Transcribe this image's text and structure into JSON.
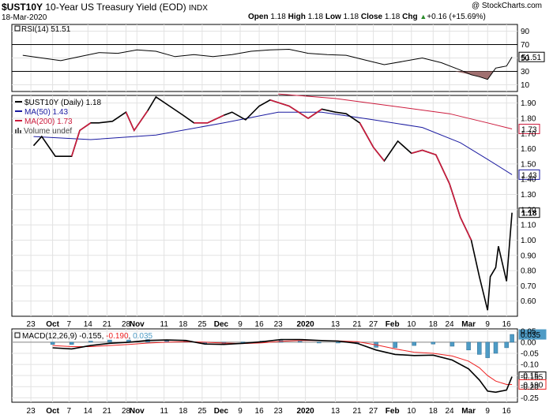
{
  "header": {
    "symbol": "$UST10Y",
    "description": "10-Year US Treasury Yield (EOD)",
    "exchange": "INDX",
    "date": "18-Mar-2020",
    "watermark": "@ StockCharts.com",
    "open_label": "Open",
    "open_value": "1.18",
    "high_label": "High",
    "high_value": "1.18",
    "low_label": "Low",
    "low_value": "1.18",
    "close_label": "Close",
    "close_value": "1.18",
    "chg_label": "Chg",
    "chg_value": "+0.16 (+15.69%)",
    "chg_arrow": "▲"
  },
  "colors": {
    "price": "#000000",
    "ma50": "#1a1aa0",
    "ma200": "#cc1a3c",
    "macd": "#000000",
    "signal": "#ee2222",
    "hist": "#4e9bc5",
    "rsi_fill": "#a07070"
  },
  "chart_data": [
    {
      "type": "line",
      "title": "RSI(14) 51.51",
      "series_label": "RSI(14)",
      "last_value": 51.51,
      "last_label": "51.51",
      "ylim": [
        0,
        100
      ],
      "y_ticks": [
        10,
        30,
        50,
        70,
        90
      ],
      "reference_lines": [
        30,
        70
      ],
      "x": [
        "2019-09-20",
        "2019-09-27",
        "2019-10-04",
        "2019-10-11",
        "2019-10-18",
        "2019-10-25",
        "2019-11-01",
        "2019-11-08",
        "2019-11-15",
        "2019-11-22",
        "2019-11-29",
        "2019-12-06",
        "2019-12-13",
        "2019-12-20",
        "2019-12-27",
        "2020-01-03",
        "2020-01-10",
        "2020-01-17",
        "2020-01-24",
        "2020-01-31",
        "2020-02-07",
        "2020-02-14",
        "2020-02-21",
        "2020-02-28",
        "2020-03-03",
        "2020-03-06",
        "2020-03-09",
        "2020-03-12",
        "2020-03-16",
        "2020-03-18"
      ],
      "values": [
        54,
        50,
        46,
        52,
        58,
        57,
        62,
        60,
        52,
        55,
        52,
        55,
        60,
        62,
        63,
        57,
        55,
        54,
        47,
        40,
        45,
        50,
        43,
        32,
        25,
        22,
        18,
        35,
        38,
        51.51
      ]
    },
    {
      "type": "line",
      "title": "$UST10Y (Daily) 1.18",
      "ylim": [
        0.5,
        1.95
      ],
      "y_ticks": [
        0.6,
        0.7,
        0.8,
        0.9,
        1.0,
        1.1,
        1.2,
        1.3,
        1.4,
        1.5,
        1.6,
        1.7,
        1.8,
        1.9
      ],
      "y_tick_labels": [
        "0.60",
        "0.70",
        "0.80",
        "0.90",
        "1.00",
        "1.10",
        "1.20",
        "1.30",
        "1.40",
        "1.50",
        "1.60",
        "1.70",
        "1.80",
        "1.90"
      ],
      "x_ticks": [
        "23",
        "Oct",
        "7",
        "14",
        "21",
        "28",
        "Nov",
        "11",
        "18",
        "25",
        "Dec",
        "9",
        "16",
        "23",
        "2020",
        "13",
        "21",
        "27",
        "Feb",
        "10",
        "18",
        "24",
        "Mar",
        "9",
        "16"
      ],
      "legend": [
        {
          "name": "$UST10Y (Daily) 1.18",
          "style": "bar"
        },
        {
          "name": "MA(50) 1.43",
          "style": "line"
        },
        {
          "name": "MA(200) 1.73",
          "style": "line"
        },
        {
          "name": "Volume undef",
          "style": "hist"
        }
      ],
      "legend_position": "top-left",
      "series": [
        {
          "name": "$UST10Y",
          "x": [
            "2019-09-24",
            "2019-09-27",
            "2019-10-02",
            "2019-10-08",
            "2019-10-11",
            "2019-10-15",
            "2019-10-18",
            "2019-10-23",
            "2019-10-28",
            "2019-10-31",
            "2019-11-05",
            "2019-11-08",
            "2019-11-13",
            "2019-11-18",
            "2019-11-22",
            "2019-11-27",
            "2019-12-03",
            "2019-12-06",
            "2019-12-11",
            "2019-12-16",
            "2019-12-20",
            "2019-12-27",
            "2020-01-03",
            "2020-01-08",
            "2020-01-13",
            "2020-01-17",
            "2020-01-22",
            "2020-01-27",
            "2020-01-31",
            "2020-02-05",
            "2020-02-10",
            "2020-02-14",
            "2020-02-19",
            "2020-02-24",
            "2020-02-28",
            "2020-03-03",
            "2020-03-06",
            "2020-03-09",
            "2020-03-10",
            "2020-03-12",
            "2020-03-13",
            "2020-03-16",
            "2020-03-18"
          ],
          "values": [
            1.62,
            1.68,
            1.55,
            1.55,
            1.72,
            1.77,
            1.77,
            1.78,
            1.84,
            1.72,
            1.85,
            1.94,
            1.88,
            1.82,
            1.77,
            1.77,
            1.82,
            1.84,
            1.79,
            1.88,
            1.92,
            1.88,
            1.8,
            1.86,
            1.84,
            1.83,
            1.77,
            1.61,
            1.52,
            1.65,
            1.57,
            1.59,
            1.56,
            1.37,
            1.15,
            1.0,
            0.76,
            0.54,
            0.76,
            0.82,
            0.96,
            0.73,
            1.18
          ]
        },
        {
          "name": "MA(50)",
          "x": [
            "2019-09-24",
            "2019-10-15",
            "2019-11-08",
            "2019-12-03",
            "2019-12-23",
            "2020-01-08",
            "2020-01-27",
            "2020-02-14",
            "2020-02-28",
            "2020-03-09",
            "2020-03-18"
          ],
          "values": [
            1.68,
            1.66,
            1.69,
            1.77,
            1.84,
            1.84,
            1.79,
            1.74,
            1.64,
            1.53,
            1.43
          ]
        },
        {
          "name": "MA(200)",
          "x": [
            "2019-12-23",
            "2020-01-13",
            "2020-02-03",
            "2020-02-24",
            "2020-03-09",
            "2020-03-18"
          ],
          "values": [
            1.96,
            1.93,
            1.88,
            1.83,
            1.77,
            1.73
          ]
        }
      ],
      "last_labels": [
        {
          "name": "MA(200)",
          "value": 1.73,
          "label": "1.73"
        },
        {
          "name": "MA(50)",
          "value": 1.43,
          "label": "1.43"
        },
        {
          "name": "$UST10Y",
          "value": 1.18,
          "label": "1.18"
        }
      ]
    },
    {
      "type": "line",
      "title": "MACD(12,26,9) -0.155, -0.190, 0.035",
      "macd_label": "MACD(12,26,9)",
      "macd_value": "-0.155",
      "signal_value": "-0.190",
      "hist_value": "0.035",
      "ylim": [
        -0.27,
        0.06
      ],
      "y_ticks": [
        0.05,
        0.0,
        -0.05,
        -0.1,
        -0.15,
        -0.2,
        -0.25
      ],
      "y_tick_labels": [
        "0.05",
        "0.00",
        "-0.05",
        "-0.10",
        "-0.15",
        "-0.20",
        "-0.25"
      ],
      "last_labels": [
        {
          "name": "Histogram",
          "value": 0.035,
          "label": "0.035"
        },
        {
          "name": "MACD",
          "value": -0.155,
          "label": "-0.155"
        },
        {
          "name": "Signal",
          "value": -0.19,
          "label": "-0.190"
        }
      ],
      "x": [
        "2019-10-01",
        "2019-10-08",
        "2019-10-15",
        "2019-10-22",
        "2019-10-29",
        "2019-11-05",
        "2019-11-12",
        "2019-11-19",
        "2019-11-26",
        "2019-12-03",
        "2019-12-10",
        "2019-12-17",
        "2019-12-24",
        "2019-12-31",
        "2020-01-07",
        "2020-01-14",
        "2020-01-21",
        "2020-01-28",
        "2020-02-04",
        "2020-02-11",
        "2020-02-18",
        "2020-02-25",
        "2020-03-02",
        "2020-03-06",
        "2020-03-09",
        "2020-03-12",
        "2020-03-16",
        "2020-03-18"
      ],
      "series": [
        {
          "name": "MACD",
          "values": [
            -0.025,
            -0.03,
            -0.015,
            -0.005,
            0.0,
            0.008,
            0.01,
            0.008,
            -0.008,
            -0.01,
            -0.005,
            0.002,
            0.012,
            0.012,
            0.008,
            0.005,
            -0.005,
            -0.035,
            -0.055,
            -0.06,
            -0.058,
            -0.08,
            -0.12,
            -0.17,
            -0.22,
            -0.225,
            -0.215,
            -0.155
          ]
        },
        {
          "name": "Signal",
          "values": [
            -0.015,
            -0.02,
            -0.02,
            -0.015,
            -0.01,
            -0.004,
            0.0,
            0.002,
            0.0,
            -0.004,
            -0.006,
            -0.003,
            0.004,
            0.008,
            0.008,
            0.006,
            0.002,
            -0.012,
            -0.03,
            -0.045,
            -0.05,
            -0.062,
            -0.085,
            -0.115,
            -0.15,
            -0.175,
            -0.19,
            -0.19
          ]
        },
        {
          "name": "Histogram",
          "values": [
            -0.01,
            -0.01,
            0.005,
            0.01,
            0.01,
            0.012,
            0.01,
            0.006,
            -0.008,
            -0.006,
            0.001,
            0.005,
            0.008,
            0.004,
            0.0,
            -0.001,
            -0.007,
            -0.023,
            -0.025,
            -0.015,
            -0.008,
            -0.018,
            -0.035,
            -0.055,
            -0.07,
            -0.05,
            -0.025,
            0.035
          ]
        }
      ]
    }
  ]
}
